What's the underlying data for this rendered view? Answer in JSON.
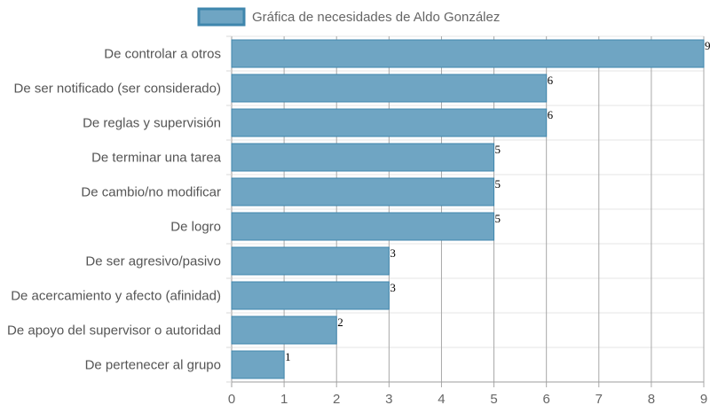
{
  "chart_data": {
    "type": "bar",
    "orientation": "horizontal",
    "title": "",
    "xlabel": "",
    "ylabel": "",
    "legend": {
      "placement": "top-center",
      "entries": [
        "Gráfica de necesidades de Aldo González"
      ]
    },
    "categories": [
      "De controlar a otros",
      "De ser notificado (ser considerado)",
      "De reglas y supervisión",
      "De terminar una tarea",
      "De cambio/no modificar",
      "De logro",
      "De ser agresivo/pasivo",
      "De acercamiento y afecto (afinidad)",
      "De apoyo del supervisor o autoridad",
      "De pertenecer al grupo"
    ],
    "series": [
      {
        "name": "Gráfica de necesidades de Aldo González",
        "values": [
          9,
          6,
          6,
          5,
          5,
          5,
          3,
          3,
          2,
          1
        ],
        "color": "#6fa5c3",
        "border_color": "#3f86ad"
      }
    ],
    "x_ticks": [
      "0",
      "1",
      "2",
      "3",
      "4",
      "5",
      "6",
      "7",
      "8",
      "9"
    ],
    "xlim": [
      0,
      9
    ],
    "grid": true,
    "data_labels": true
  }
}
